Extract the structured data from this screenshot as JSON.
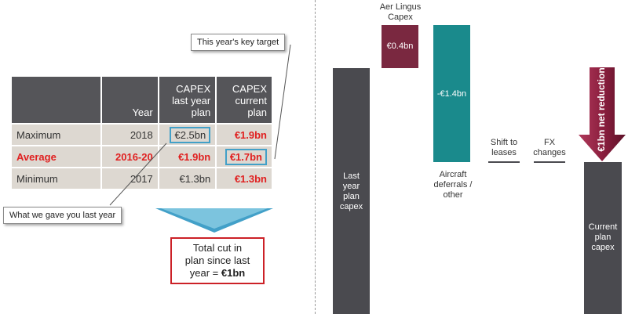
{
  "table": {
    "headers": [
      "",
      "Year",
      "CAPEX last year plan",
      "CAPEX current plan"
    ],
    "header_lines": {
      "year": "Year",
      "last_plan": [
        "CAPEX",
        "last year",
        "plan"
      ],
      "current_plan": [
        "CAPEX",
        "current",
        "plan"
      ]
    },
    "rows": [
      {
        "label": "Maximum",
        "year": "2018",
        "last_plan": "€2.5bn",
        "current_plan": "€1.9bn"
      },
      {
        "label": "Average",
        "year": "2016-20",
        "last_plan": "€1.9bn",
        "current_plan": "€1.7bn"
      },
      {
        "label": "Minimum",
        "year": "2017",
        "last_plan": "€1.3bn",
        "current_plan": "€1.3bn"
      }
    ]
  },
  "callouts": {
    "target": "This year's key target",
    "gave": "What we gave you last year"
  },
  "total_box": {
    "line1": "Total cut in",
    "line2": "plan since last",
    "line3_prefix": "year = ",
    "line3_bold": "€1bn"
  },
  "colors": {
    "header_bg": "#555559",
    "cell_bg": "#ddd8d1",
    "highlight": "#e02020",
    "callout_border": "#42a0c8",
    "bar_dark": "#4a4a4f",
    "bar_aer": "#7a2840",
    "bar_teal": "#1a8a8c",
    "arrow": "#8c1f3f",
    "total_border": "#cc2127"
  },
  "chart_data": {
    "type": "bar",
    "subtype": "waterfall",
    "categories": [
      "Last year plan capex",
      "Aer Lingus Capex",
      "Aircraft deferrals / other",
      "Shift to leases",
      "FX changes",
      "Current plan capex"
    ],
    "category_lines": [
      [
        "Last",
        "year",
        "plan",
        "capex"
      ],
      [
        "Aer Lingus",
        "Capex"
      ],
      [
        "Aircraft",
        "deferrals /",
        "other"
      ],
      [
        "Shift to",
        "leases"
      ],
      [
        "FX",
        "changes"
      ],
      [
        "Current",
        "plan",
        "capex"
      ]
    ],
    "value_labels": [
      "",
      "€0.4bn",
      "-€1.4bn",
      "",
      "",
      ""
    ],
    "values": [
      9.5,
      0.4,
      -1.4,
      0,
      0,
      8.5
    ],
    "annotation": "€1bn net reduction"
  }
}
